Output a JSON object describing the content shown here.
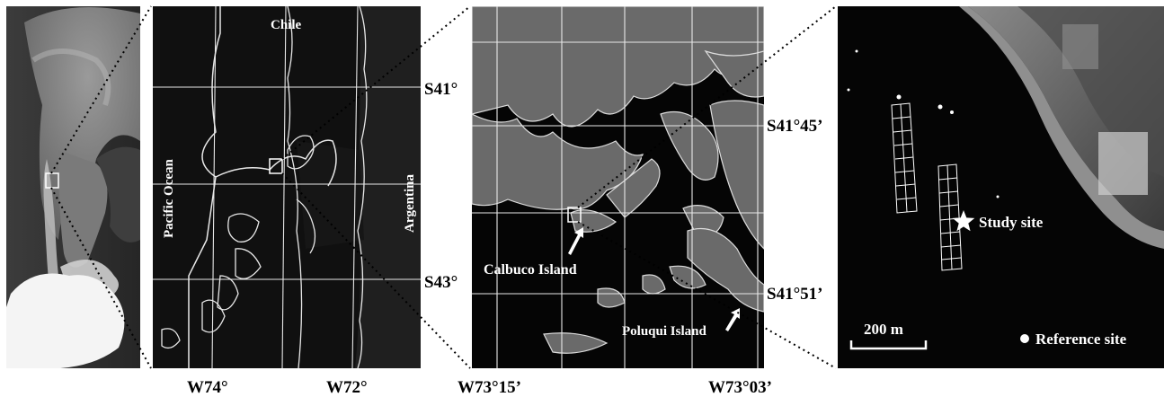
{
  "panel1": {},
  "panel2": {
    "country_top": "Chile",
    "ocean": "Pacific Ocean",
    "country_right": "Argentina",
    "lat_labels": [
      "S41°",
      "S43°"
    ],
    "lon_labels": [
      "W74°",
      "W72°"
    ]
  },
  "panel3": {
    "lat_labels": [
      "S41°45’",
      "S41°51’"
    ],
    "lon_labels": [
      "W73°15’",
      "W73°03’"
    ],
    "island1": "Calbuco Island",
    "island2": "Poluqui Island"
  },
  "panel4": {
    "study_site": "Study site",
    "reference_site": "Reference site",
    "scale_bar": "200 m"
  }
}
